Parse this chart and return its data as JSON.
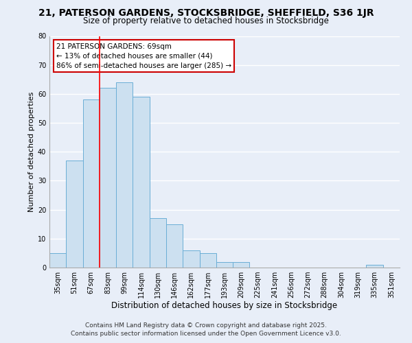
{
  "title": "21, PATERSON GARDENS, STOCKSBRIDGE, SHEFFIELD, S36 1JR",
  "subtitle": "Size of property relative to detached houses in Stocksbridge",
  "xlabel": "Distribution of detached houses by size in Stocksbridge",
  "ylabel": "Number of detached properties",
  "categories": [
    "35sqm",
    "51sqm",
    "67sqm",
    "83sqm",
    "99sqm",
    "114sqm",
    "130sqm",
    "146sqm",
    "162sqm",
    "177sqm",
    "193sqm",
    "209sqm",
    "225sqm",
    "241sqm",
    "256sqm",
    "272sqm",
    "288sqm",
    "304sqm",
    "319sqm",
    "335sqm",
    "351sqm"
  ],
  "values": [
    5,
    37,
    58,
    62,
    64,
    59,
    17,
    15,
    6,
    5,
    2,
    2,
    0,
    0,
    0,
    0,
    0,
    0,
    0,
    1,
    0
  ],
  "bar_color": "#cce0f0",
  "bar_edge_color": "#6aaed6",
  "ylim": [
    0,
    80
  ],
  "yticks": [
    0,
    10,
    20,
    30,
    40,
    50,
    60,
    70,
    80
  ],
  "property_line_x": 2.5,
  "annotation_title": "21 PATERSON GARDENS: 69sqm",
  "annotation_line1": "← 13% of detached houses are smaller (44)",
  "annotation_line2": "86% of semi-detached houses are larger (285) →",
  "footnote1": "Contains HM Land Registry data © Crown copyright and database right 2025.",
  "footnote2": "Contains public sector information licensed under the Open Government Licence v3.0.",
  "background_color": "#e8eef8",
  "grid_color": "#ffffff",
  "title_fontsize": 10,
  "subtitle_fontsize": 8.5,
  "xlabel_fontsize": 8.5,
  "ylabel_fontsize": 8,
  "tick_fontsize": 7,
  "annotation_fontsize": 7.5,
  "footnote_fontsize": 6.5
}
